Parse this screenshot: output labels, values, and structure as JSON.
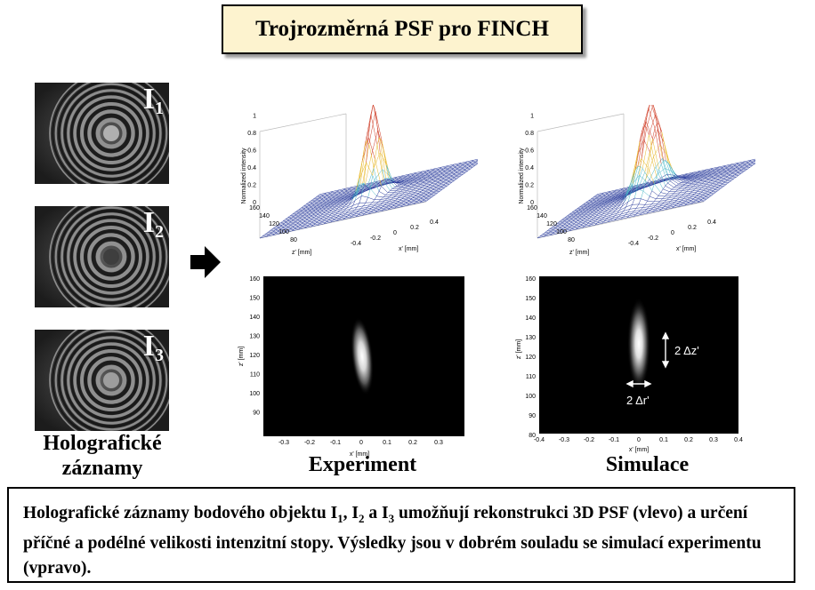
{
  "title": "Trojrozměrná PSF pro FINCH",
  "holograms": [
    {
      "label": "I",
      "sub": "1"
    },
    {
      "label": "I",
      "sub": "2"
    },
    {
      "label": "I",
      "sub": "3"
    }
  ],
  "holograms_caption_line1": "Holografické",
  "holograms_caption_line2": "záznamy",
  "experiment_caption": "Experiment",
  "simulation_caption": "Simulace",
  "surface_plot": {
    "zlabel": "Normalized intensity",
    "xlabel": "x' [mm]",
    "ylabel": "z' [mm]",
    "z_ticks": [
      "0",
      "0.2",
      "0.4",
      "0.6",
      "0.8",
      "1"
    ],
    "zaxis_ticks": [
      "160",
      "140",
      "120",
      "100",
      "80"
    ],
    "x_ticks": [
      "-0.4",
      "-0.2",
      "0",
      "0.2",
      "0.4"
    ]
  },
  "experiment_map": {
    "ylabel": "z' [mm]",
    "xlabel": "x' [mm]",
    "y_ticks": [
      "160",
      "150",
      "140",
      "130",
      "120",
      "110",
      "100",
      "90"
    ],
    "x_ticks": [
      "-0.3",
      "-0.2",
      "-0.1",
      "0",
      "0.1",
      "0.2",
      "0.3"
    ]
  },
  "simulation_map": {
    "ylabel": "z' [mm]",
    "xlabel": "x' [mm]",
    "y_ticks": [
      "160",
      "150",
      "140",
      "130",
      "120",
      "110",
      "100",
      "90",
      "80"
    ],
    "x_ticks": [
      "-0.4",
      "-0.3",
      "-0.2",
      "-0.1",
      "0",
      "0.1",
      "0.2",
      "0.3",
      "0.4"
    ],
    "dz_label": "2 Δz'",
    "dr_label": "2 Δr'"
  },
  "description": {
    "t1": "Holografické záznamy bodového objektu I",
    "s1": "1",
    "t2": ", I",
    "s2": "2",
    "t3": " a I",
    "s3": "3",
    "t4": " umožňují rekonstrukci 3D PSF (vlevo) a určení příčné a podélné velikosti intenzitní stopy. Výsledky jsou v dobrém souladu se simulací experimentu (vpravo)."
  }
}
